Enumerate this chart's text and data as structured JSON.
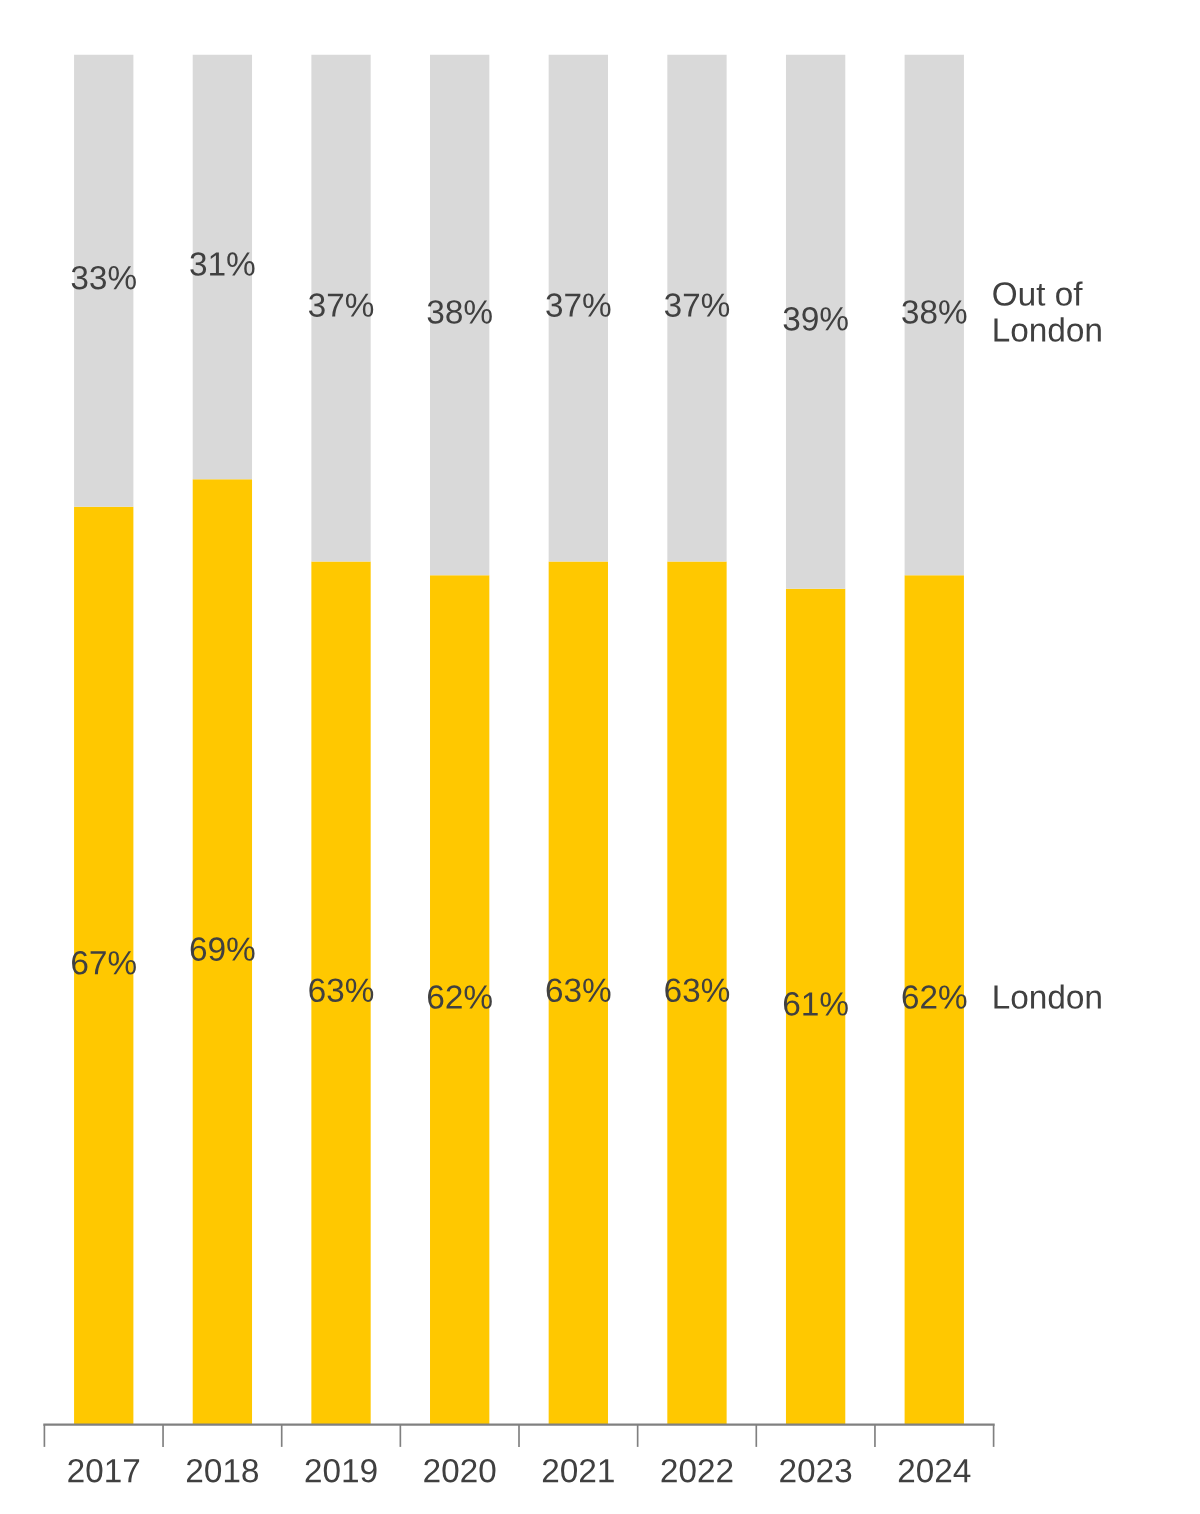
{
  "chart_data": {
    "type": "bar",
    "stacked": true,
    "ylim": [
      0,
      100
    ],
    "tick_labels": "x",
    "grid": false,
    "legend": false,
    "categories": [
      "2017",
      "2018",
      "2019",
      "2020",
      "2021",
      "2022",
      "2023",
      "2024"
    ],
    "series": [
      {
        "name": "London",
        "color": "#ffc800",
        "values": [
          67,
          69,
          63,
          62,
          63,
          63,
          61,
          62
        ],
        "value_labels": [
          "67%",
          "69%",
          "63%",
          "62%",
          "63%",
          "63%",
          "61%",
          "62%"
        ]
      },
      {
        "name": "Out of\nLondon",
        "color": "#d9d9d9",
        "values": [
          33,
          31,
          37,
          38,
          37,
          37,
          39,
          38
        ],
        "value_labels": [
          "33%",
          "31%",
          "37%",
          "38%",
          "37%",
          "37%",
          "39%",
          "38%"
        ]
      }
    ]
  }
}
